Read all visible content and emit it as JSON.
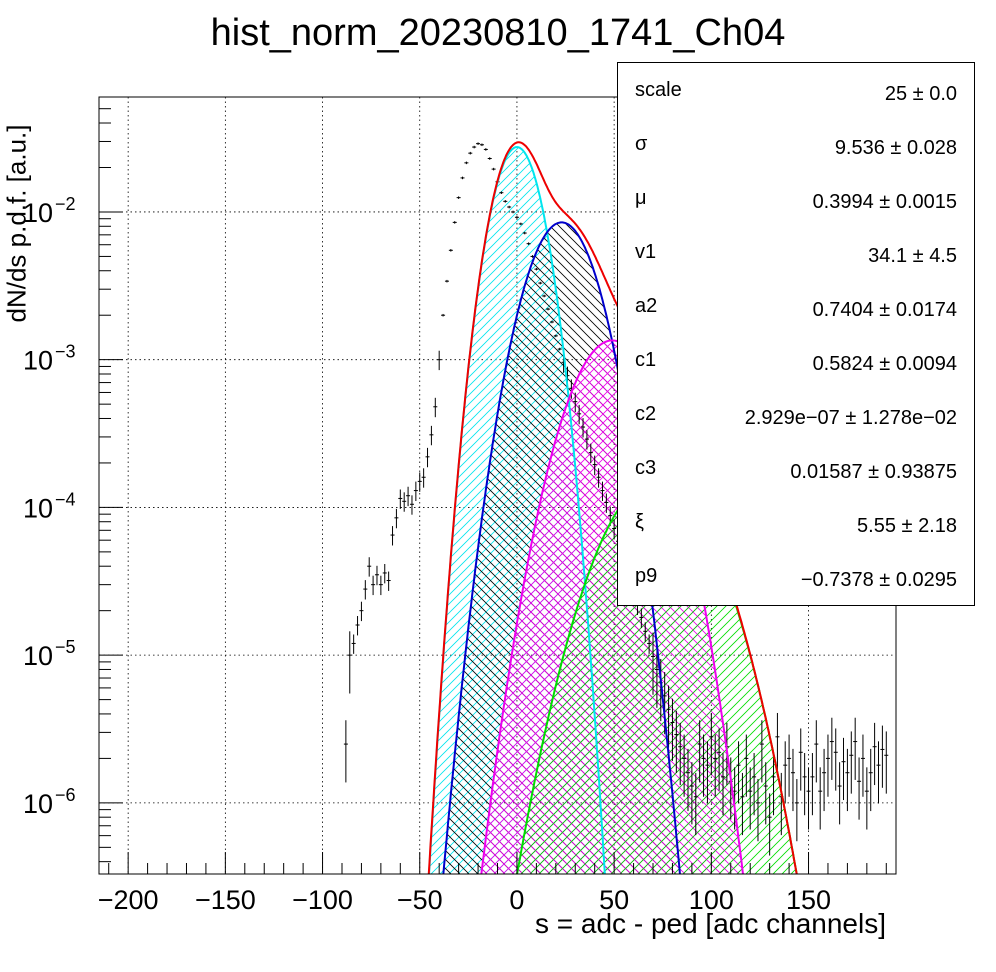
{
  "title": "hist_norm_20230810_1741_Ch04",
  "chart_data": {
    "type": "scatter",
    "title": "hist_norm_20230810_1741_Ch04",
    "xlabel": "s = adc - ped [adc channels]",
    "ylabel": "dN/ds p.d.f. [a.u.]",
    "xlim": [
      -215,
      195
    ],
    "ylim": [
      3.3e-07,
      0.06
    ],
    "yscale": "log",
    "grid": true,
    "x_ticks": [
      -200,
      -150,
      -100,
      -50,
      0,
      50,
      100,
      150
    ],
    "y_ticks": [
      {
        "value": 0.01,
        "label": "10",
        "exp": "−2"
      },
      {
        "value": 0.001,
        "label": "10",
        "exp": "−3"
      },
      {
        "value": 0.0001,
        "label": "10",
        "exp": "−4"
      },
      {
        "value": 1e-05,
        "label": "10",
        "exp": "−5"
      },
      {
        "value": 1e-06,
        "label": "10",
        "exp": "−6"
      }
    ],
    "data_points": {
      "x": [
        -88,
        -86,
        -84,
        -82,
        -80,
        -78,
        -76,
        -74,
        -72,
        -70,
        -68,
        -66,
        -64,
        -62,
        -60,
        -58,
        -56,
        -54,
        -52,
        -50,
        -48,
        -46,
        -44,
        -42,
        -40,
        -38,
        -36,
        -34,
        -32,
        -30,
        -28,
        -26,
        -24,
        -22,
        -20,
        -18,
        -16,
        -14,
        -12,
        -10,
        -8,
        -6,
        -4,
        -2,
        0,
        2,
        4,
        6,
        8,
        10,
        12,
        14,
        16,
        18,
        20,
        22,
        24,
        26,
        28,
        30,
        32,
        34,
        36,
        38,
        40,
        42,
        44,
        46,
        48,
        50,
        52,
        54,
        56,
        58,
        60,
        62,
        64,
        66,
        68,
        70,
        72,
        74,
        76,
        78,
        80,
        82,
        84,
        86,
        88,
        90,
        92,
        94,
        96,
        98,
        100,
        102,
        104,
        106,
        108,
        110,
        112,
        114,
        116,
        118,
        120,
        122,
        124,
        126,
        128,
        130,
        132,
        134,
        136,
        138,
        140,
        142,
        144,
        146,
        148,
        150,
        152,
        154,
        156,
        158,
        160,
        162,
        164,
        166,
        168,
        170,
        172,
        174,
        176,
        178,
        180,
        182,
        184,
        186,
        188,
        190
      ],
      "y": [
        2.5e-06,
        1e-05,
        1.2e-05,
        1.6e-05,
        2e-05,
        2.8e-05,
        4e-05,
        3e-05,
        3.5e-05,
        3e-05,
        3.6e-05,
        3.2e-05,
        6.5e-05,
        8.5e-05,
        0.000115,
        0.00011,
        0.00012,
        0.000105,
        0.00013,
        0.00015,
        0.00016,
        0.00022,
        0.00031,
        0.00048,
        0.001,
        0.002,
        0.0034,
        0.0055,
        0.0085,
        0.0125,
        0.017,
        0.0215,
        0.025,
        0.0275,
        0.029,
        0.0285,
        0.0265,
        0.023,
        0.0195,
        0.016,
        0.0135,
        0.0118,
        0.0108,
        0.01,
        0.0092,
        0.0083,
        0.0072,
        0.0061,
        0.005,
        0.0041,
        0.0033,
        0.0027,
        0.0022,
        0.0018,
        0.00145,
        0.00118,
        0.00096,
        0.00078,
        0.00064,
        0.00052,
        0.00043,
        0.00035,
        0.00029,
        0.000235,
        0.000195,
        0.00016,
        0.00013,
        0.000108,
        8.8e-05,
        7.2e-05,
        5.9e-05,
        4.8e-05,
        3.9e-05,
        3.2e-05,
        2.6e-05,
        2.2e-05,
        1.8e-05,
        1.45e-05,
        1.2e-05,
        9.8e-06,
        8e-06,
        6.5e-06,
        5.3e-06,
        4.3e-06,
        3.5e-06,
        2.9e-06,
        2.4e-06,
        2e-06,
        1.6e-06,
        1.3e-06,
        1.1e-06,
        2.5e-06,
        2e-06,
        1.8e-06,
        2.8e-06,
        2e-06,
        2.2e-06,
        1.5e-06,
        2.4e-06,
        1.4e-06,
        1.2e-06,
        1.8e-06,
        1.1e-06,
        2e-06,
        1.2e-06,
        1.5e-06,
        1e-06,
        2.5e-06,
        1.3e-06,
        8e-07,
        1.5e-06,
        2.8e-06,
        1.1e-06,
        1.8e-06,
        2e-06,
        1.6e-06,
        1e-06,
        2.2e-06,
        1.5e-06,
        1.2e-06,
        1.5e-06,
        2.5e-06,
        1.2e-06,
        1.6e-06,
        2e-06,
        2.6e-06,
        2.2e-06,
        1.3e-06,
        1.9e-06,
        1.6e-06,
        2.1e-06,
        2.6e-06,
        1.4e-06,
        2e-06,
        1.2e-06,
        1.6e-06,
        2.4e-06,
        1.8e-06,
        2.3e-06,
        2.1e-06
      ]
    },
    "components": [
      {
        "color": "#00e5ee",
        "mu": 0,
        "sigma": 9.5,
        "amp": 0.0275,
        "hatch": "right"
      },
      {
        "color": "#0000cc",
        "mu": 23,
        "sigma": 13.5,
        "amp": 0.0085,
        "hatch": "left"
      },
      {
        "color": "#ee00ee",
        "mu": 49,
        "sigma": 16.5,
        "amp": 0.00135,
        "hatch": "both"
      },
      {
        "color": "#00dd00",
        "mu": 72,
        "sigma": 20.5,
        "amp": 0.000155,
        "hatch": "right"
      }
    ],
    "total_fit": {
      "color": "#ee0000"
    }
  },
  "stats": [
    {
      "key": "scale",
      "value": "25 ± 0.0"
    },
    {
      "key": "σ",
      "value": "9.536 ± 0.028"
    },
    {
      "key": "μ",
      "value": "0.3994 ± 0.0015"
    },
    {
      "key": "v1",
      "value": "34.1 ± 4.5"
    },
    {
      "key": "a2",
      "value": "0.7404 ± 0.0174"
    },
    {
      "key": "c1",
      "value": "0.5824 ± 0.0094"
    },
    {
      "key": "c2",
      "value": "2.929e−07 ± 1.278e−02"
    },
    {
      "key": "c3",
      "value": "0.01587 ± 0.93875"
    },
    {
      "key": "ξ",
      "value": "5.55 ± 2.18"
    },
    {
      "key": "p9",
      "value": "−0.7378 ± 0.0295"
    }
  ]
}
